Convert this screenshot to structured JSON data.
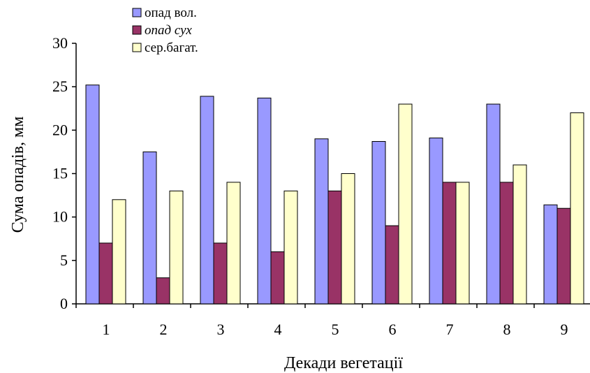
{
  "chart_data": {
    "type": "bar",
    "title": "",
    "xlabel": "Декади вегетації",
    "ylabel": "Сума опадів, мм",
    "categories": [
      "1",
      "2",
      "3",
      "4",
      "5",
      "6",
      "7",
      "8",
      "9"
    ],
    "ylim": [
      0,
      30
    ],
    "yticks": [
      "0",
      "5",
      "10",
      "15",
      "20",
      "25",
      "30"
    ],
    "grid": false,
    "legend_position": "top-center",
    "series": [
      {
        "name": "опад вол.",
        "color": "#9999ff",
        "italic": false,
        "values": [
          25.2,
          17.5,
          23.9,
          23.7,
          19.0,
          18.7,
          19.1,
          23.0,
          11.4
        ]
      },
      {
        "name": "опад сух",
        "color": "#993366",
        "italic": true,
        "values": [
          7.0,
          3.0,
          7.0,
          6.0,
          13.0,
          9.0,
          14.0,
          14.0,
          11.0
        ]
      },
      {
        "name": "сер.багат.",
        "color": "#ffffcc",
        "italic": false,
        "values": [
          12.0,
          13.0,
          14.0,
          13.0,
          15.0,
          23.0,
          14.0,
          16.0,
          22.0
        ]
      }
    ]
  }
}
